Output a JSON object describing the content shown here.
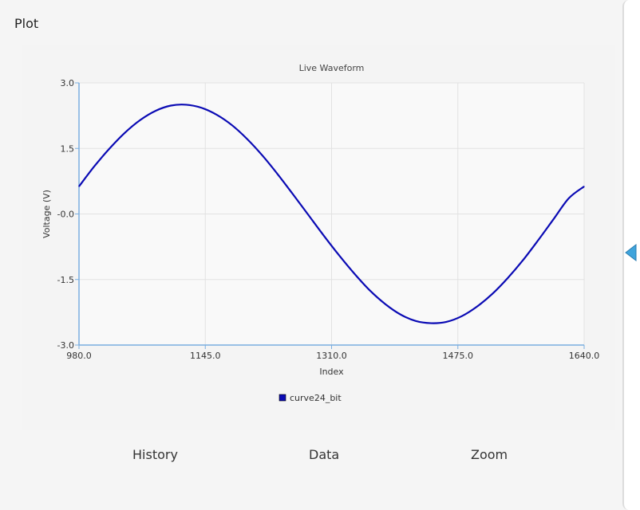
{
  "panel": {
    "title": "Plot"
  },
  "tabs": {
    "history": "History",
    "data": "Data",
    "zoom": "Zoom"
  },
  "colors": {
    "line": "#0a0ab4",
    "axis": "#7aaee0",
    "grid": "#e2e2e2",
    "plot_bg": "#f9f9f9",
    "drawer_handle": "#3fa4dc"
  },
  "drawer": {
    "handle_icon": "chevron-left-icon"
  },
  "chart_data": {
    "type": "line",
    "title": "Live Waveform",
    "xlabel": "Index",
    "ylabel": "Voltage (V)",
    "xlim": [
      980,
      1640
    ],
    "ylim": [
      -3,
      3
    ],
    "xticks": [
      980,
      1145,
      1310,
      1475,
      1640
    ],
    "xtick_labels": [
      "980.0",
      "1145.0",
      "1310.0",
      "1475.0",
      "1640.0"
    ],
    "yticks": [
      3,
      1.5,
      0,
      -1.5,
      -3
    ],
    "ytick_labels": [
      "3.0",
      "1.5",
      "-0.0",
      "-1.5",
      "-3.0"
    ],
    "grid": true,
    "legend_position": "bottom-center",
    "series": [
      {
        "name": "curve24_bit",
        "color": "#0a0ab4",
        "x": [
          980,
          1000,
          1020,
          1040,
          1060,
          1080,
          1100,
          1120,
          1140,
          1160,
          1180,
          1200,
          1220,
          1240,
          1260,
          1280,
          1300,
          1320,
          1340,
          1360,
          1380,
          1400,
          1420,
          1440,
          1460,
          1480,
          1500,
          1520,
          1540,
          1560,
          1580,
          1600,
          1620,
          1640
        ],
        "y": [
          0.63,
          1.09,
          1.5,
          1.86,
          2.15,
          2.36,
          2.48,
          2.5,
          2.43,
          2.27,
          2.03,
          1.71,
          1.33,
          0.9,
          0.44,
          -0.03,
          -0.5,
          -0.95,
          -1.37,
          -1.75,
          -2.06,
          -2.3,
          -2.45,
          -2.5,
          -2.47,
          -2.34,
          -2.12,
          -1.83,
          -1.47,
          -1.06,
          -0.6,
          -0.12,
          0.36,
          0.63
        ]
      }
    ]
  }
}
